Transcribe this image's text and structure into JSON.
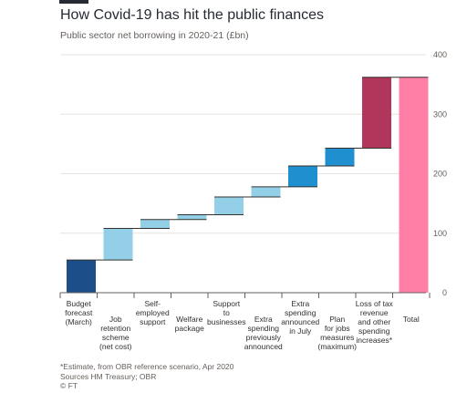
{
  "header": {
    "title": "How Covid-19 has hit the public finances",
    "subtitle": "Public sector net borrowing in 2020-21 (£bn)"
  },
  "footer": {
    "note": "*Estimate, from OBR reference scenario, Apr 2020",
    "sources": "Sources HM Treasury; OBR",
    "credit": "© FT"
  },
  "colors": {
    "budget": "#1c4f8a",
    "measures_light": "#93d0e8",
    "measures_mid": "#1f8fd0",
    "tax_loss": "#b1365c",
    "total": "#ff7fa7",
    "grid": "#e6e3df",
    "axis": "#66605c",
    "step_line": "#33302e"
  },
  "chart_data": {
    "type": "bar",
    "subtype": "waterfall",
    "title": "How Covid-19 has hit the public finances",
    "subtitle": "Public sector net borrowing in 2020-21 (£bn)",
    "xlabel": "",
    "ylabel": "",
    "ylim": [
      0,
      400
    ],
    "yticks": [
      0,
      100,
      200,
      300,
      400
    ],
    "y_axis_side": "right",
    "grid": true,
    "categories": [
      [
        "Budget",
        "forecast",
        "(March)"
      ],
      [
        "Job",
        "retention",
        "scheme",
        "(net cost)"
      ],
      [
        "Self-",
        "employed",
        "support"
      ],
      [
        "Welfare",
        "package"
      ],
      [
        "Support",
        "to",
        "businesses"
      ],
      [
        "Extra",
        "spending",
        "previously",
        "announced"
      ],
      [
        "Extra",
        "spending",
        "announced",
        "in July"
      ],
      [
        "Plan",
        "for jobs",
        "measures",
        "(maximum)"
      ],
      [
        "Loss of tax",
        "revenue",
        "and other",
        "spending",
        "increases*"
      ],
      [
        "Total"
      ]
    ],
    "label_rows": [
      "top",
      "bottom",
      "top",
      "bottom",
      "top",
      "bottom",
      "top",
      "bottom",
      "top",
      "bottom"
    ],
    "bars": [
      {
        "start": 0,
        "end": 55,
        "color": "budget"
      },
      {
        "start": 55,
        "end": 108,
        "color": "measures_light"
      },
      {
        "start": 108,
        "end": 123,
        "color": "measures_light"
      },
      {
        "start": 123,
        "end": 131,
        "color": "measures_light"
      },
      {
        "start": 131,
        "end": 161,
        "color": "measures_light"
      },
      {
        "start": 161,
        "end": 178,
        "color": "measures_light"
      },
      {
        "start": 178,
        "end": 213,
        "color": "measures_mid"
      },
      {
        "start": 213,
        "end": 243,
        "color": "measures_mid"
      },
      {
        "start": 243,
        "end": 362,
        "color": "tax_loss"
      },
      {
        "start": 0,
        "end": 362,
        "color": "total"
      }
    ]
  }
}
